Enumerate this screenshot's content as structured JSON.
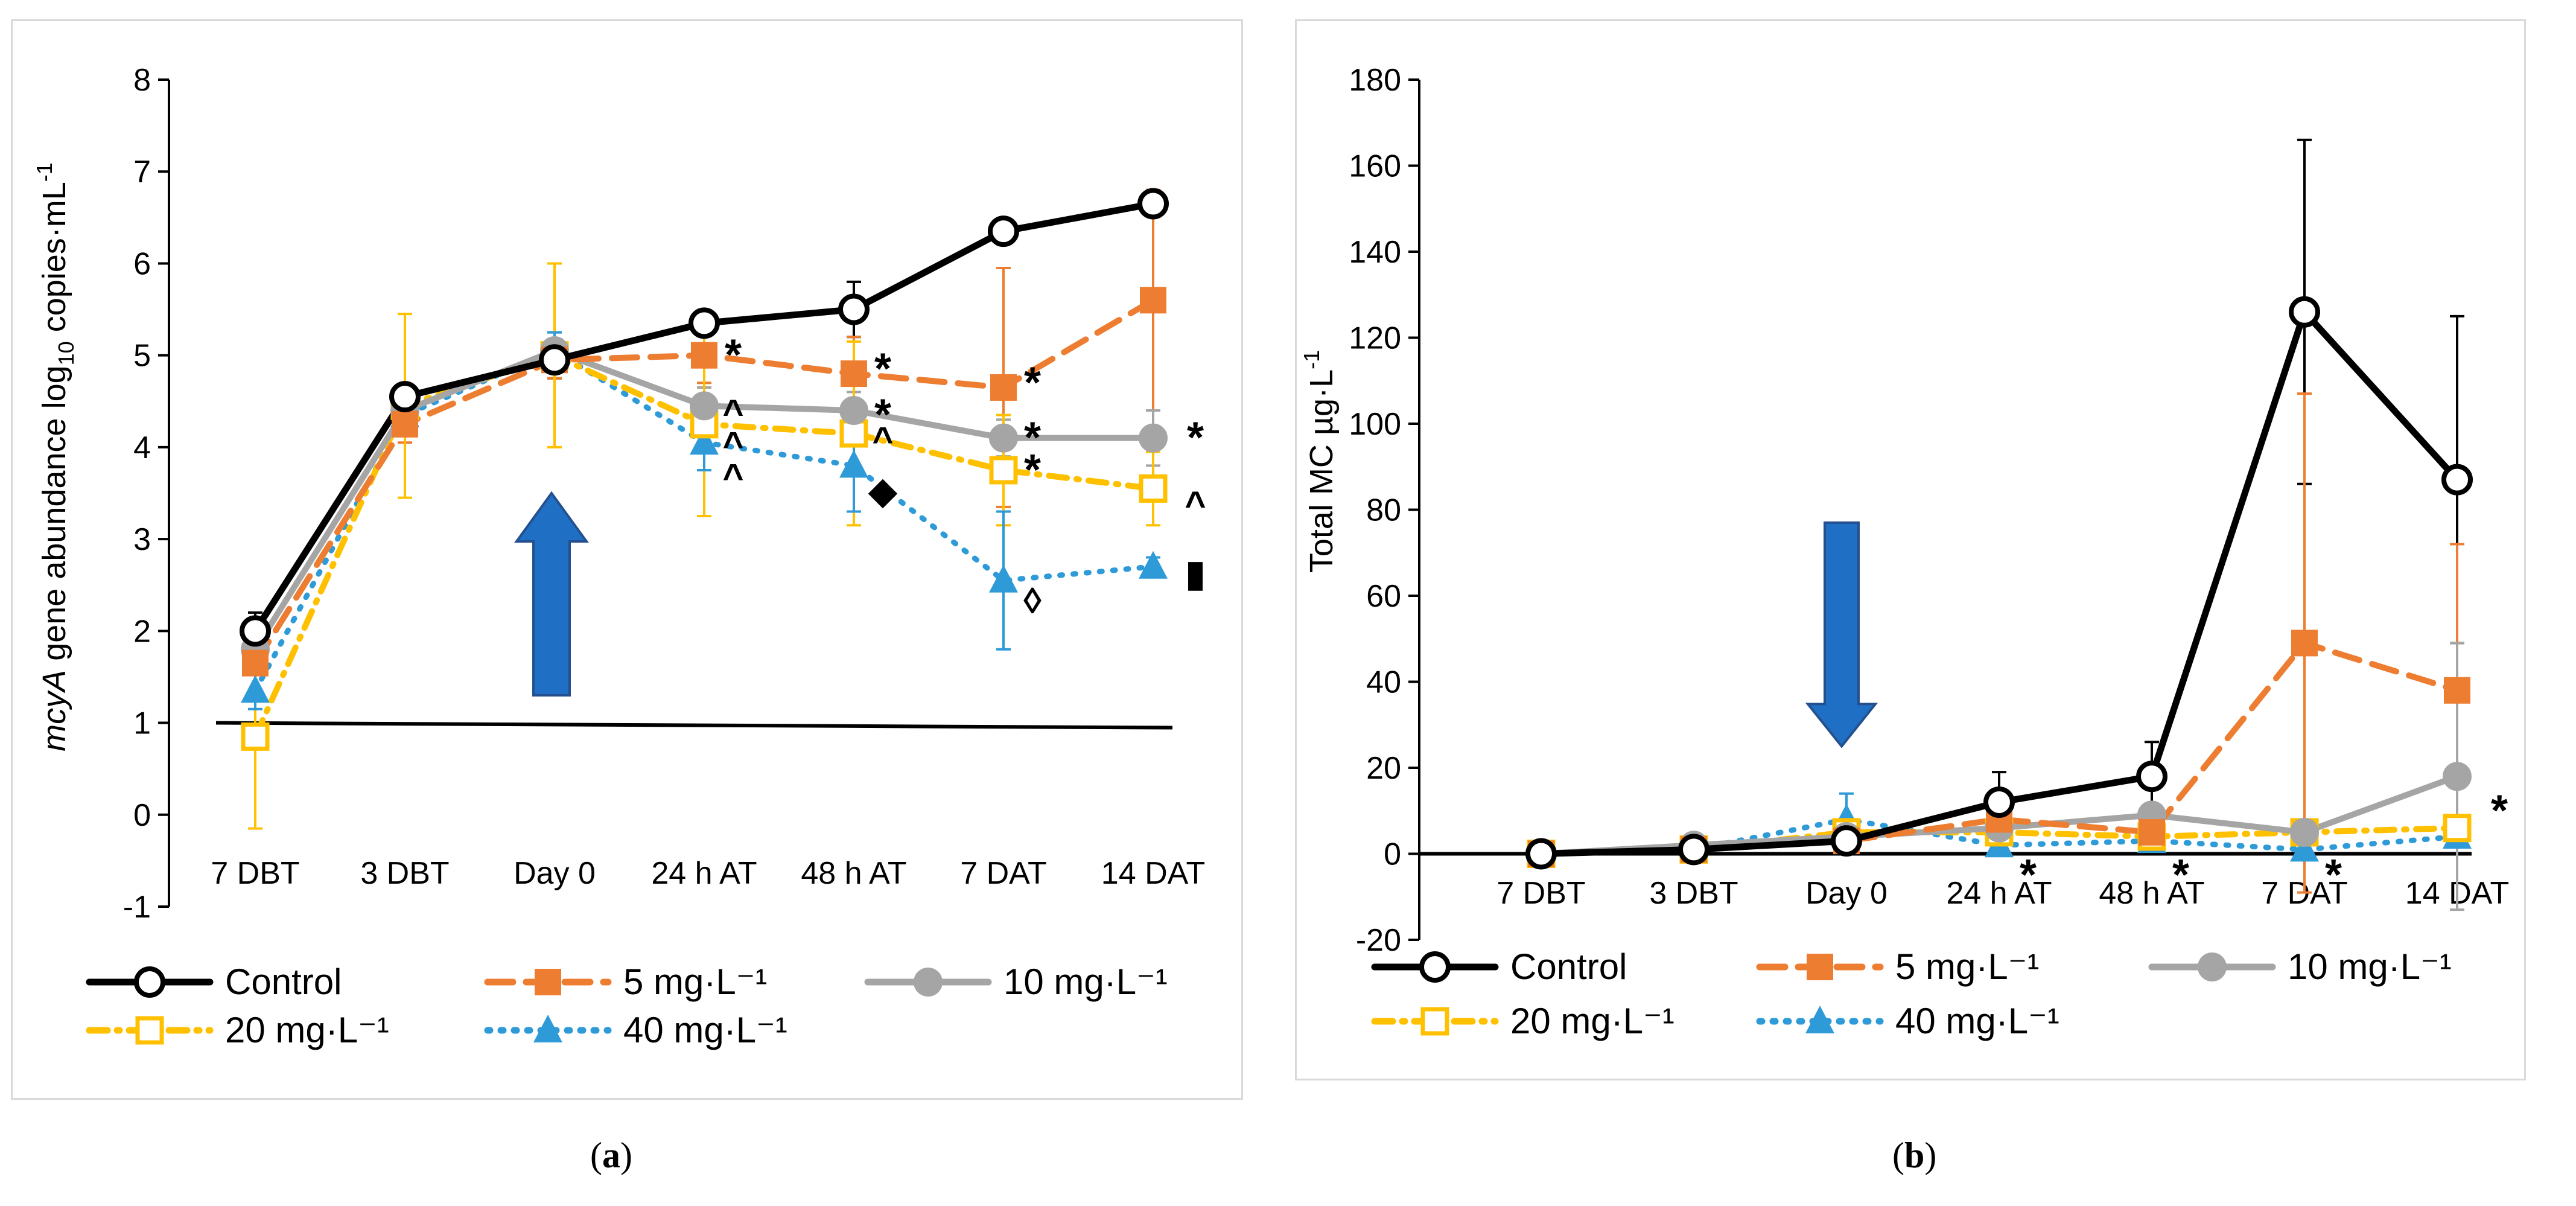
{
  "figure": {
    "panel_a_caption": {
      "open": "(",
      "letter": "a",
      "close": ")"
    },
    "panel_b_caption": {
      "open": "(",
      "letter": "b",
      "close": ")"
    }
  },
  "colors": {
    "control": "#000000",
    "c5": "#ED7D31",
    "c10": "#A5A5A5",
    "c20": "#FFC000",
    "c40": "#2E9BD8",
    "arrow": "#1F6FC5",
    "grid_axis": "#000000"
  },
  "legend": {
    "row1": [
      "Control",
      "5 mg·L⁻¹",
      "10 mg·L⁻¹"
    ],
    "row2": [
      "20 mg·L⁻¹",
      "40 mg·L⁻¹"
    ]
  },
  "chart_data": [
    {
      "id": "a",
      "type": "line",
      "ylabel": {
        "italic": "mcyA",
        "rest": " gene abundance log",
        "sub": "10",
        "unit": " copies·mL",
        "sup": "-1"
      },
      "xlabel": "",
      "ylim": [
        -1,
        8
      ],
      "yticks": [
        -1,
        0,
        1,
        2,
        3,
        4,
        5,
        6,
        7,
        8
      ],
      "categories": [
        "7 DBT",
        "3 DBT",
        "Day 0",
        "24 h AT",
        "48 h AT",
        "7 DAT",
        "14 DAT"
      ],
      "baseline": 1,
      "treatment_arrow": {
        "category": "Day 0",
        "direction": "up",
        "from": 1.3,
        "to": 3.5
      },
      "series": [
        {
          "name": "Control",
          "key": "control",
          "style": "solid",
          "marker": "circle-open",
          "values": [
            2.0,
            4.55,
            4.95,
            5.35,
            5.5,
            6.35,
            6.65
          ],
          "err": [
            0.2,
            0.1,
            0.2,
            0.1,
            0.3,
            0.1,
            0.1
          ]
        },
        {
          "name": "5 mg·L⁻¹",
          "key": "c5",
          "style": "dash",
          "marker": "square-filled",
          "values": [
            1.65,
            4.25,
            4.95,
            5.0,
            4.8,
            4.65,
            5.6
          ],
          "err": [
            0.1,
            0.2,
            0.2,
            0.3,
            0.4,
            1.3,
            1.2
          ]
        },
        {
          "name": "10 mg·L⁻¹",
          "key": "c10",
          "style": "solid",
          "marker": "circle-filled",
          "values": [
            1.8,
            4.4,
            5.05,
            4.45,
            4.4,
            4.1,
            4.1
          ],
          "err": [
            0.15,
            0.15,
            0.2,
            0.2,
            0.2,
            0.2,
            0.3
          ]
        },
        {
          "name": "20 mg·L⁻¹",
          "key": "c20",
          "style": "dashdot",
          "marker": "square-open",
          "values": [
            0.85,
            4.45,
            5.0,
            4.25,
            4.15,
            3.75,
            3.55
          ],
          "err": [
            1.0,
            1.0,
            1.0,
            1.0,
            1.0,
            0.6,
            0.4
          ]
        },
        {
          "name": "40 mg·L⁻¹",
          "key": "c40",
          "style": "dotted",
          "marker": "triangle-filled",
          "values": [
            1.35,
            4.35,
            5.05,
            4.05,
            3.8,
            2.55,
            2.7
          ],
          "err": [
            0.2,
            0.2,
            0.2,
            0.3,
            0.5,
            0.75,
            0.1
          ]
        }
      ],
      "annotations": [
        {
          "text": "*",
          "category": "24 h AT",
          "y": 5.0,
          "side": "right"
        },
        {
          "text": "*",
          "category": "48 h AT",
          "y": 4.85,
          "side": "right"
        },
        {
          "text": "*",
          "category": "7 DAT",
          "y": 4.7,
          "side": "right"
        },
        {
          "text": "^",
          "category": "24 h AT",
          "y": 4.4,
          "side": "right"
        },
        {
          "text": "*",
          "category": "48 h AT",
          "y": 4.35,
          "side": "right"
        },
        {
          "text": "*",
          "category": "7 DAT",
          "y": 4.1,
          "side": "right"
        },
        {
          "text": "*",
          "category": "14 DAT",
          "y": 4.1,
          "side": "farright"
        },
        {
          "text": "^",
          "category": "24 h AT",
          "y": 4.05,
          "side": "right"
        },
        {
          "text": "^",
          "category": "48 h AT",
          "y": 4.1,
          "side": "right"
        },
        {
          "text": "^",
          "category": "24 h AT",
          "y": 3.7,
          "side": "right"
        },
        {
          "text": "*",
          "category": "7 DAT",
          "y": 3.75,
          "side": "right"
        },
        {
          "text": "^",
          "category": "14 DAT",
          "y": 3.4,
          "side": "farright"
        },
        {
          "text": "◆",
          "category": "48 h AT",
          "y": 3.55,
          "side": "right"
        },
        {
          "text": "◊",
          "category": "7 DAT",
          "y": 2.35,
          "side": "right"
        },
        {
          "text": "▮",
          "category": "14 DAT",
          "y": 2.65,
          "side": "farright"
        }
      ]
    },
    {
      "id": "b",
      "type": "line",
      "ylabel": {
        "italic": "",
        "rest": "Total MC ",
        "sub": "",
        "unit": "µg·L",
        "sup": "-1"
      },
      "xlabel": "",
      "ylim": [
        -20,
        180
      ],
      "yticks": [
        -20,
        0,
        20,
        40,
        60,
        80,
        100,
        120,
        140,
        160,
        180
      ],
      "categories": [
        "7 DBT",
        "3 DBT",
        "Day 0",
        "24 h AT",
        "48 h AT",
        "7 DAT",
        "14 DAT"
      ],
      "baseline": 0,
      "treatment_arrow": {
        "category": "Day 0",
        "direction": "down",
        "from": 77,
        "to": 25
      },
      "series": [
        {
          "name": "Control",
          "key": "control",
          "style": "solid",
          "marker": "circle-open",
          "values": [
            0,
            1,
            3,
            12,
            18,
            126,
            87
          ],
          "err": [
            0,
            0.5,
            1,
            7,
            8,
            40,
            38
          ]
        },
        {
          "name": "5 mg·L⁻¹",
          "key": "c5",
          "style": "dash",
          "marker": "square-filled",
          "values": [
            0,
            1,
            3,
            8,
            5,
            49,
            38
          ],
          "err": [
            0,
            0.5,
            1,
            1,
            1,
            58,
            34
          ]
        },
        {
          "name": "10 mg·L⁻¹",
          "key": "c10",
          "style": "solid",
          "marker": "circle-filled",
          "values": [
            0,
            2,
            4,
            6,
            9,
            5,
            18
          ],
          "err": [
            0,
            0.5,
            1,
            1,
            1,
            1,
            31
          ]
        },
        {
          "name": "20 mg·L⁻¹",
          "key": "c20",
          "style": "dashdot",
          "marker": "square-open",
          "values": [
            0,
            1,
            5,
            5,
            4,
            5,
            6
          ],
          "err": [
            0,
            0.5,
            1,
            1,
            1,
            1,
            1
          ]
        },
        {
          "name": "40 mg·L⁻¹",
          "key": "c40",
          "style": "dotted",
          "marker": "triangle-filled",
          "values": [
            0,
            1,
            8,
            2,
            3,
            1,
            4
          ],
          "err": [
            0,
            0.5,
            6,
            1,
            1,
            1,
            1
          ]
        }
      ],
      "annotations": [
        {
          "text": "*",
          "category": "24 h AT",
          "y": -5,
          "side": "right"
        },
        {
          "text": "*",
          "category": "48 h AT",
          "y": -5,
          "side": "right"
        },
        {
          "text": "*",
          "category": "7 DAT",
          "y": -5,
          "side": "right"
        },
        {
          "text": "*",
          "category": "14 DAT",
          "y": 10,
          "side": "farright"
        }
      ]
    }
  ]
}
